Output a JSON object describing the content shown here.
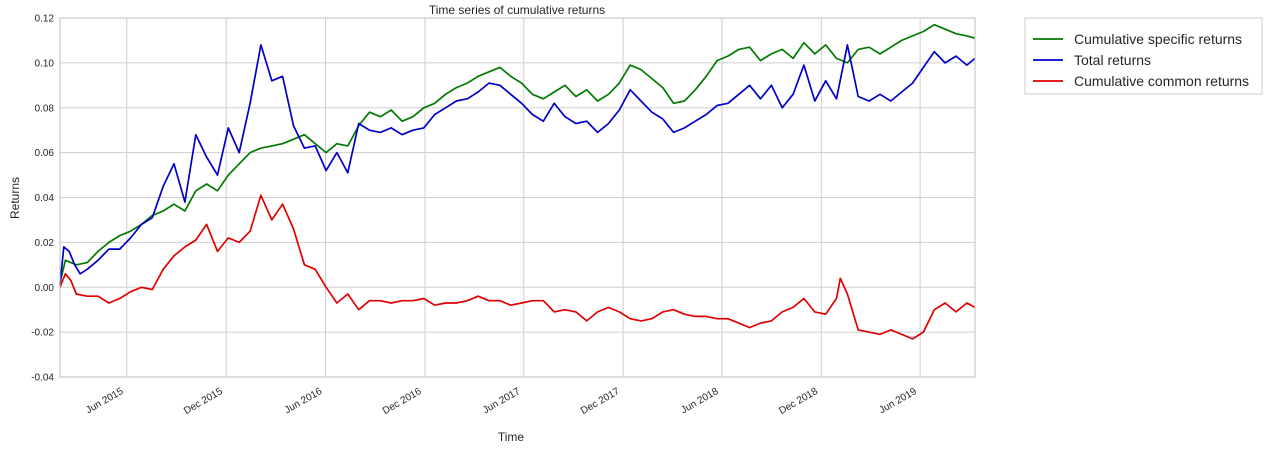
{
  "chart_data": {
    "type": "line",
    "title": "Time series of cumulative returns",
    "xlabel": "Time",
    "ylabel": "Returns",
    "xlim": [
      "2015-01-29",
      "2019-09-10"
    ],
    "ylim": [
      -0.04,
      0.12
    ],
    "y_ticks": [
      -0.04,
      -0.02,
      0.0,
      0.02,
      0.04,
      0.06,
      0.08,
      0.1,
      0.12
    ],
    "y_tick_labels": [
      "-0.04",
      "-0.02",
      "0.00",
      "0.02",
      "0.04",
      "0.06",
      "0.08",
      "0.10",
      "0.12"
    ],
    "x_ticks": [
      "2015-06-01",
      "2015-12-01",
      "2016-06-01",
      "2016-12-01",
      "2017-06-01",
      "2017-12-01",
      "2018-06-01",
      "2018-12-01",
      "2019-06-01"
    ],
    "x_tick_labels": [
      "Jun 2015",
      "Dec 2015",
      "Jun 2016",
      "Dec 2016",
      "Jun 2017",
      "Dec 2017",
      "Jun 2018",
      "Dec 2018",
      "Jun 2019"
    ],
    "grid": true,
    "legend_position": "outside-top-right",
    "series": [
      {
        "name": "Cumulative specific returns",
        "color": "#007a00",
        "points": [
          [
            "2015-01-29",
            0.002
          ],
          [
            "2015-02-08",
            0.012
          ],
          [
            "2015-02-28",
            0.01
          ],
          [
            "2015-03-20",
            0.011
          ],
          [
            "2015-04-09",
            0.016
          ],
          [
            "2015-04-29",
            0.02
          ],
          [
            "2015-05-19",
            0.023
          ],
          [
            "2015-06-08",
            0.025
          ],
          [
            "2015-06-28",
            0.028
          ],
          [
            "2015-07-18",
            0.032
          ],
          [
            "2015-08-07",
            0.034
          ],
          [
            "2015-08-27",
            0.037
          ],
          [
            "2015-09-16",
            0.034
          ],
          [
            "2015-10-06",
            0.043
          ],
          [
            "2015-10-26",
            0.046
          ],
          [
            "2015-11-15",
            0.043
          ],
          [
            "2015-12-05",
            0.05
          ],
          [
            "2015-12-25",
            0.055
          ],
          [
            "2016-01-14",
            0.06
          ],
          [
            "2016-02-03",
            0.062
          ],
          [
            "2016-02-23",
            0.063
          ],
          [
            "2016-03-14",
            0.064
          ],
          [
            "2016-04-03",
            0.066
          ],
          [
            "2016-04-23",
            0.068
          ],
          [
            "2016-05-13",
            0.064
          ],
          [
            "2016-06-02",
            0.06
          ],
          [
            "2016-06-22",
            0.064
          ],
          [
            "2016-07-12",
            0.063
          ],
          [
            "2016-08-01",
            0.072
          ],
          [
            "2016-08-21",
            0.078
          ],
          [
            "2016-09-10",
            0.076
          ],
          [
            "2016-09-30",
            0.079
          ],
          [
            "2016-10-20",
            0.074
          ],
          [
            "2016-11-09",
            0.076
          ],
          [
            "2016-11-29",
            0.08
          ],
          [
            "2016-12-19",
            0.082
          ],
          [
            "2017-01-08",
            0.086
          ],
          [
            "2017-01-28",
            0.089
          ],
          [
            "2017-02-17",
            0.091
          ],
          [
            "2017-03-09",
            0.094
          ],
          [
            "2017-03-29",
            0.096
          ],
          [
            "2017-04-18",
            0.098
          ],
          [
            "2017-05-08",
            0.094
          ],
          [
            "2017-05-28",
            0.091
          ],
          [
            "2017-06-17",
            0.086
          ],
          [
            "2017-07-07",
            0.084
          ],
          [
            "2017-07-27",
            0.087
          ],
          [
            "2017-08-16",
            0.09
          ],
          [
            "2017-09-05",
            0.085
          ],
          [
            "2017-09-25",
            0.088
          ],
          [
            "2017-10-15",
            0.083
          ],
          [
            "2017-11-04",
            0.086
          ],
          [
            "2017-11-24",
            0.091
          ],
          [
            "2017-12-14",
            0.099
          ],
          [
            "2018-01-03",
            0.097
          ],
          [
            "2018-01-23",
            0.093
          ],
          [
            "2018-02-12",
            0.089
          ],
          [
            "2018-03-04",
            0.082
          ],
          [
            "2018-03-24",
            0.083
          ],
          [
            "2018-04-13",
            0.088
          ],
          [
            "2018-05-03",
            0.094
          ],
          [
            "2018-05-23",
            0.101
          ],
          [
            "2018-06-12",
            0.103
          ],
          [
            "2018-07-02",
            0.106
          ],
          [
            "2018-07-22",
            0.107
          ],
          [
            "2018-08-11",
            0.101
          ],
          [
            "2018-08-31",
            0.104
          ],
          [
            "2018-09-20",
            0.106
          ],
          [
            "2018-10-10",
            0.102
          ],
          [
            "2018-10-30",
            0.109
          ],
          [
            "2018-11-19",
            0.104
          ],
          [
            "2018-12-09",
            0.108
          ],
          [
            "2018-12-29",
            0.102
          ],
          [
            "2019-01-18",
            0.1
          ],
          [
            "2019-02-07",
            0.106
          ],
          [
            "2019-02-27",
            0.107
          ],
          [
            "2019-03-19",
            0.104
          ],
          [
            "2019-04-08",
            0.107
          ],
          [
            "2019-04-28",
            0.11
          ],
          [
            "2019-05-18",
            0.112
          ],
          [
            "2019-06-07",
            0.114
          ],
          [
            "2019-06-27",
            0.117
          ],
          [
            "2019-07-17",
            0.115
          ],
          [
            "2019-08-06",
            0.113
          ],
          [
            "2019-08-26",
            0.112
          ],
          [
            "2019-09-10",
            0.111
          ]
        ]
      },
      {
        "name": "Total returns",
        "color": "#0000c8",
        "points": [
          [
            "2015-01-29",
            0.001
          ],
          [
            "2015-02-05",
            0.018
          ],
          [
            "2015-02-15",
            0.016
          ],
          [
            "2015-02-25",
            0.01
          ],
          [
            "2015-03-07",
            0.006
          ],
          [
            "2015-03-20",
            0.008
          ],
          [
            "2015-04-09",
            0.012
          ],
          [
            "2015-04-29",
            0.017
          ],
          [
            "2015-05-19",
            0.017
          ],
          [
            "2015-06-08",
            0.022
          ],
          [
            "2015-06-28",
            0.028
          ],
          [
            "2015-07-18",
            0.031
          ],
          [
            "2015-08-07",
            0.045
          ],
          [
            "2015-08-27",
            0.055
          ],
          [
            "2015-09-16",
            0.038
          ],
          [
            "2015-10-06",
            0.068
          ],
          [
            "2015-10-26",
            0.058
          ],
          [
            "2015-11-15",
            0.05
          ],
          [
            "2015-12-05",
            0.071
          ],
          [
            "2015-12-25",
            0.06
          ],
          [
            "2016-01-14",
            0.082
          ],
          [
            "2016-02-03",
            0.108
          ],
          [
            "2016-02-23",
            0.092
          ],
          [
            "2016-03-14",
            0.094
          ],
          [
            "2016-04-03",
            0.072
          ],
          [
            "2016-04-23",
            0.062
          ],
          [
            "2016-05-13",
            0.063
          ],
          [
            "2016-06-02",
            0.052
          ],
          [
            "2016-06-22",
            0.06
          ],
          [
            "2016-07-12",
            0.051
          ],
          [
            "2016-08-01",
            0.073
          ],
          [
            "2016-08-21",
            0.07
          ],
          [
            "2016-09-10",
            0.069
          ],
          [
            "2016-09-30",
            0.071
          ],
          [
            "2016-10-20",
            0.068
          ],
          [
            "2016-11-09",
            0.07
          ],
          [
            "2016-11-29",
            0.071
          ],
          [
            "2016-12-19",
            0.077
          ],
          [
            "2017-01-08",
            0.08
          ],
          [
            "2017-01-28",
            0.083
          ],
          [
            "2017-02-17",
            0.084
          ],
          [
            "2017-03-09",
            0.087
          ],
          [
            "2017-03-29",
            0.091
          ],
          [
            "2017-04-18",
            0.09
          ],
          [
            "2017-05-08",
            0.086
          ],
          [
            "2017-05-28",
            0.082
          ],
          [
            "2017-06-17",
            0.077
          ],
          [
            "2017-07-07",
            0.074
          ],
          [
            "2017-07-27",
            0.082
          ],
          [
            "2017-08-16",
            0.076
          ],
          [
            "2017-09-05",
            0.073
          ],
          [
            "2017-09-25",
            0.074
          ],
          [
            "2017-10-15",
            0.069
          ],
          [
            "2017-11-04",
            0.073
          ],
          [
            "2017-11-24",
            0.079
          ],
          [
            "2017-12-14",
            0.088
          ],
          [
            "2018-01-03",
            0.083
          ],
          [
            "2018-01-23",
            0.078
          ],
          [
            "2018-02-12",
            0.075
          ],
          [
            "2018-03-04",
            0.069
          ],
          [
            "2018-03-24",
            0.071
          ],
          [
            "2018-04-13",
            0.074
          ],
          [
            "2018-05-03",
            0.077
          ],
          [
            "2018-05-23",
            0.081
          ],
          [
            "2018-06-12",
            0.082
          ],
          [
            "2018-07-02",
            0.086
          ],
          [
            "2018-07-22",
            0.09
          ],
          [
            "2018-08-11",
            0.084
          ],
          [
            "2018-08-31",
            0.09
          ],
          [
            "2018-09-20",
            0.08
          ],
          [
            "2018-10-10",
            0.086
          ],
          [
            "2018-10-30",
            0.099
          ],
          [
            "2018-11-19",
            0.083
          ],
          [
            "2018-12-09",
            0.092
          ],
          [
            "2018-12-29",
            0.084
          ],
          [
            "2019-01-18",
            0.108
          ],
          [
            "2019-02-07",
            0.085
          ],
          [
            "2019-02-27",
            0.083
          ],
          [
            "2019-03-19",
            0.086
          ],
          [
            "2019-04-08",
            0.083
          ],
          [
            "2019-04-28",
            0.087
          ],
          [
            "2019-05-18",
            0.091
          ],
          [
            "2019-06-07",
            0.098
          ],
          [
            "2019-06-27",
            0.105
          ],
          [
            "2019-07-17",
            0.1
          ],
          [
            "2019-08-06",
            0.103
          ],
          [
            "2019-08-26",
            0.099
          ],
          [
            "2019-09-10",
            0.102
          ]
        ]
      },
      {
        "name": "Cumulative common returns",
        "color": "#e00000",
        "points": [
          [
            "2015-01-29",
            0.0
          ],
          [
            "2015-02-08",
            0.006
          ],
          [
            "2015-02-18",
            0.003
          ],
          [
            "2015-02-28",
            -0.003
          ],
          [
            "2015-03-20",
            -0.004
          ],
          [
            "2015-04-09",
            -0.004
          ],
          [
            "2015-04-29",
            -0.007
          ],
          [
            "2015-05-19",
            -0.005
          ],
          [
            "2015-06-08",
            -0.002
          ],
          [
            "2015-06-28",
            0.0
          ],
          [
            "2015-07-18",
            -0.001
          ],
          [
            "2015-08-07",
            0.008
          ],
          [
            "2015-08-27",
            0.014
          ],
          [
            "2015-09-16",
            0.018
          ],
          [
            "2015-10-06",
            0.021
          ],
          [
            "2015-10-26",
            0.028
          ],
          [
            "2015-11-15",
            0.016
          ],
          [
            "2015-12-05",
            0.022
          ],
          [
            "2015-12-25",
            0.02
          ],
          [
            "2016-01-14",
            0.025
          ],
          [
            "2016-02-03",
            0.041
          ],
          [
            "2016-02-23",
            0.03
          ],
          [
            "2016-03-14",
            0.037
          ],
          [
            "2016-04-03",
            0.026
          ],
          [
            "2016-04-23",
            0.01
          ],
          [
            "2016-05-13",
            0.008
          ],
          [
            "2016-06-02",
            0.0
          ],
          [
            "2016-06-22",
            -0.007
          ],
          [
            "2016-07-12",
            -0.003
          ],
          [
            "2016-08-01",
            -0.01
          ],
          [
            "2016-08-21",
            -0.006
          ],
          [
            "2016-09-10",
            -0.006
          ],
          [
            "2016-09-30",
            -0.007
          ],
          [
            "2016-10-20",
            -0.006
          ],
          [
            "2016-11-09",
            -0.006
          ],
          [
            "2016-11-29",
            -0.005
          ],
          [
            "2016-12-19",
            -0.008
          ],
          [
            "2017-01-08",
            -0.007
          ],
          [
            "2017-01-28",
            -0.007
          ],
          [
            "2017-02-17",
            -0.006
          ],
          [
            "2017-03-09",
            -0.004
          ],
          [
            "2017-03-29",
            -0.006
          ],
          [
            "2017-04-18",
            -0.006
          ],
          [
            "2017-05-08",
            -0.008
          ],
          [
            "2017-05-28",
            -0.007
          ],
          [
            "2017-06-17",
            -0.006
          ],
          [
            "2017-07-07",
            -0.006
          ],
          [
            "2017-07-27",
            -0.011
          ],
          [
            "2017-08-16",
            -0.01
          ],
          [
            "2017-09-05",
            -0.011
          ],
          [
            "2017-09-25",
            -0.015
          ],
          [
            "2017-10-15",
            -0.011
          ],
          [
            "2017-11-04",
            -0.009
          ],
          [
            "2017-11-24",
            -0.011
          ],
          [
            "2017-12-14",
            -0.014
          ],
          [
            "2018-01-03",
            -0.015
          ],
          [
            "2018-01-23",
            -0.014
          ],
          [
            "2018-02-12",
            -0.011
          ],
          [
            "2018-03-04",
            -0.01
          ],
          [
            "2018-03-24",
            -0.012
          ],
          [
            "2018-04-13",
            -0.013
          ],
          [
            "2018-05-03",
            -0.013
          ],
          [
            "2018-05-23",
            -0.014
          ],
          [
            "2018-06-12",
            -0.014
          ],
          [
            "2018-07-02",
            -0.016
          ],
          [
            "2018-07-22",
            -0.018
          ],
          [
            "2018-08-11",
            -0.016
          ],
          [
            "2018-08-31",
            -0.015
          ],
          [
            "2018-09-20",
            -0.011
          ],
          [
            "2018-10-10",
            -0.009
          ],
          [
            "2018-10-30",
            -0.005
          ],
          [
            "2018-11-19",
            -0.011
          ],
          [
            "2018-12-09",
            -0.012
          ],
          [
            "2018-12-29",
            -0.005
          ],
          [
            "2019-01-05",
            0.004
          ],
          [
            "2019-01-18",
            -0.003
          ],
          [
            "2019-02-07",
            -0.019
          ],
          [
            "2019-02-27",
            -0.02
          ],
          [
            "2019-03-19",
            -0.021
          ],
          [
            "2019-04-08",
            -0.019
          ],
          [
            "2019-04-28",
            -0.021
          ],
          [
            "2019-05-18",
            -0.023
          ],
          [
            "2019-06-07",
            -0.02
          ],
          [
            "2019-06-27",
            -0.01
          ],
          [
            "2019-07-17",
            -0.007
          ],
          [
            "2019-08-06",
            -0.011
          ],
          [
            "2019-08-26",
            -0.007
          ],
          [
            "2019-09-10",
            -0.009
          ]
        ]
      }
    ]
  }
}
